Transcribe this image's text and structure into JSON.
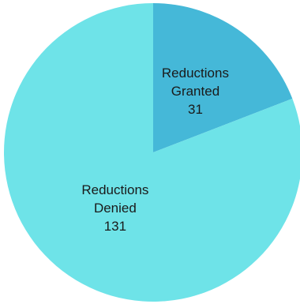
{
  "chart_data": {
    "type": "pie",
    "title": "",
    "start_angle_deg": 0,
    "direction": "clockwise",
    "slices": [
      {
        "label_lines": [
          "Reductions",
          "Granted"
        ],
        "value": 31,
        "value_label": "31",
        "color": "#45b8d8"
      },
      {
        "label_lines": [
          "Reductions",
          "Denied"
        ],
        "value": 131,
        "value_label": "131",
        "color": "#6ee3e8"
      }
    ],
    "legend": "none",
    "data_labels": "inside"
  }
}
